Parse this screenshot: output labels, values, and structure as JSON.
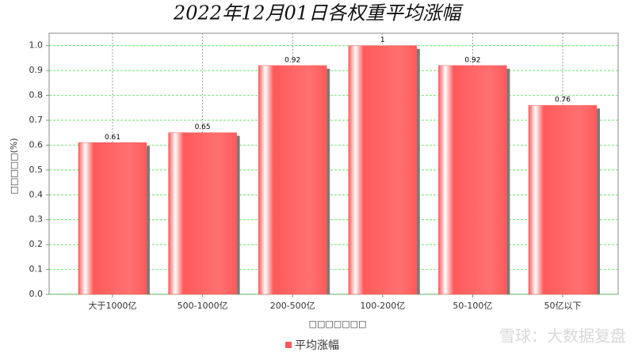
{
  "chart_data": {
    "type": "bar",
    "title": "2022年12月01日各权重平均涨幅",
    "y_label": "□□□□□(%)",
    "x_label": "□□□□□□□",
    "categories": [
      "大于1000亿",
      "500-1000亿",
      "200-500亿",
      "100-200亿",
      "50-100亿",
      "50亿以下"
    ],
    "series": [
      {
        "name": "平均涨幅",
        "color": "#ff5a5a",
        "values": [
          0.61,
          0.65,
          0.92,
          1,
          0.92,
          0.76
        ]
      }
    ],
    "ylim": [
      0,
      1.05
    ],
    "yticks": [
      {
        "value": 0,
        "label": "0.0"
      },
      0.1,
      0.2,
      0.3,
      0.4,
      0.5,
      0.6,
      0.7,
      0.8,
      0.9,
      {
        "value": 1,
        "label": "1.0"
      }
    ],
    "grid": true,
    "watermark": "雪球：大数据复盘"
  }
}
